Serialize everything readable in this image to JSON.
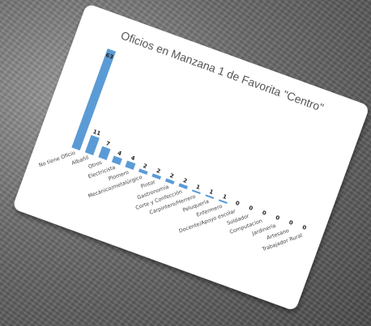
{
  "chart_data": {
    "type": "bar",
    "title": "Oficios en Manzana 1 de Favorita \"Centro\"",
    "categories": [
      "No tiene Oficio",
      "Albañil",
      "Otros",
      "Electricista",
      "Plomero",
      "Mecánico/metalúrgico",
      "Pintor",
      "Gastronomía",
      "Corte y Confección",
      "Carpintero/Herrero",
      "Peluquería",
      "Enfermero",
      "Docente/Apoyo escolar",
      "Soldador",
      "Computacion",
      "Jardinería",
      "Artesano",
      "Trabajador Rural"
    ],
    "values": [
      63,
      11,
      7,
      4,
      4,
      2,
      2,
      2,
      2,
      1,
      1,
      1,
      0,
      0,
      0,
      0,
      0,
      0
    ],
    "ylim": [
      0,
      63
    ],
    "bar_color": "#5b9bd5",
    "grid": false,
    "legend": "none"
  }
}
